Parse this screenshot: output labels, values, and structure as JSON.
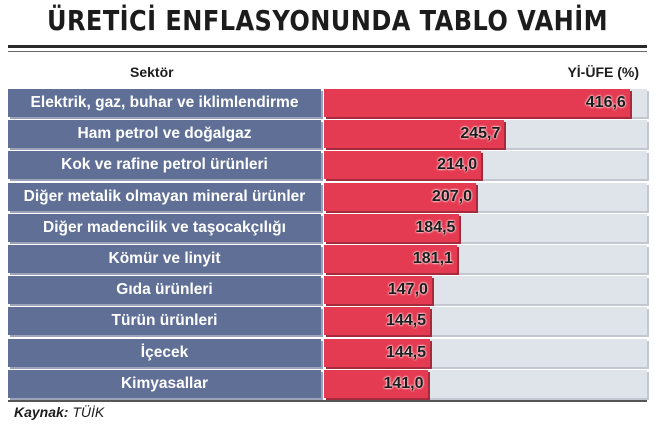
{
  "title": "ÜRETİCİ ENFLASYONUNDA TABLO VAHİM",
  "header": {
    "sector_label": "Sektör",
    "unit_label": "Yİ-ÜFE (%)"
  },
  "source": {
    "prefix": "Kaynak:",
    "name": "TÜİK"
  },
  "colors": {
    "label_bg": "#5f6f96",
    "bar": "#e53b52",
    "track": "#dfe3ea"
  },
  "chart_data": {
    "type": "bar",
    "orientation": "horizontal",
    "categories": [
      "Elektrik, gaz, buhar ve iklimlendirme",
      "Ham petrol ve doğalgaz",
      "Kok ve rafine petrol ürünleri",
      "Diğer metalik olmayan mineral ürünler",
      "Diğer madencilik ve taşocakçılığı",
      "Kömür ve linyit",
      "Gıda ürünleri",
      "Türün ürünleri",
      "İçecek",
      "Kimyasallar"
    ],
    "values": [
      416.6,
      245.7,
      214.0,
      207.0,
      184.5,
      181.1,
      147.0,
      144.5,
      144.5,
      141.0
    ],
    "value_labels": [
      "416,6",
      "245,7",
      "214,0",
      "207,0",
      "184,5",
      "181,1",
      "147,0",
      "144,5",
      "144,5",
      "141,0"
    ],
    "xlim": [
      0,
      440
    ]
  }
}
